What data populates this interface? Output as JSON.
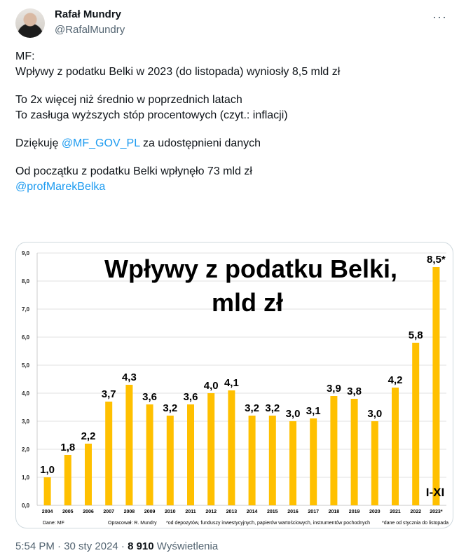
{
  "author": {
    "name": "Rafał Mundry",
    "handle": "@RafalMundry",
    "more_icon": "more-dots-icon"
  },
  "tweet": {
    "line1": "MF:",
    "line2": "Wpływy z podatku Belki w 2023 (do listopada) wyniosły 8,5 mld zł",
    "line3": "To 2x więcej niż średnio w poprzednich latach",
    "line4": "To zasługa wyższych stóp procentowych (czyt.: inflacji)",
    "line5_pre": "Dziękuję ",
    "line5_mention": "@MF_GOV_PL",
    "line5_post": " za udostępnieni danych",
    "line6": "Od początku z podatku Belki wpłynęło 73 mld zł",
    "line7_mention": "@profMarekBelka"
  },
  "chart_data": {
    "type": "bar",
    "title": "Wpływy z podatku Belki,",
    "subtitle": "mld zł",
    "categories": [
      "2004",
      "2005",
      "2006",
      "2007",
      "2008",
      "2009",
      "2010",
      "2011",
      "2012",
      "2013",
      "2014",
      "2015",
      "2016",
      "2017",
      "2018",
      "2019",
      "2020",
      "2021",
      "2022",
      "2023*"
    ],
    "values": [
      1.0,
      1.8,
      2.2,
      3.7,
      4.3,
      3.6,
      3.2,
      3.6,
      4.0,
      4.1,
      3.2,
      3.2,
      3.0,
      3.1,
      3.9,
      3.8,
      3.0,
      4.2,
      5.8,
      8.5
    ],
    "value_labels": [
      "1,0",
      "1,8",
      "2,2",
      "3,7",
      "4,3",
      "3,6",
      "3,2",
      "3,6",
      "4,0",
      "4,1",
      "3,2",
      "3,2",
      "3,0",
      "3,1",
      "3,9",
      "3,8",
      "3,0",
      "4,2",
      "5,8",
      "8,5*"
    ],
    "yticks": [
      "0,0",
      "1,0",
      "2,0",
      "3,0",
      "4,0",
      "5,0",
      "6,0",
      "7,0",
      "8,0",
      "9,0"
    ],
    "ylim": [
      0,
      9
    ],
    "bar_color": "#ffc000",
    "annotation": "I-XI",
    "source": "Dane: MF",
    "credit": "Opracował: R. Mundry",
    "footnote1": "*od depozytów, funduszy inwestycyjnych, papierów wartościowych, instrumentów pochodnych",
    "footnote2": "*dane od stycznia do listopada"
  },
  "footer": {
    "time": "5:54 PM · 30 sty 2024 · ",
    "views": "8 910",
    "views_label": " Wyświetlenia"
  }
}
